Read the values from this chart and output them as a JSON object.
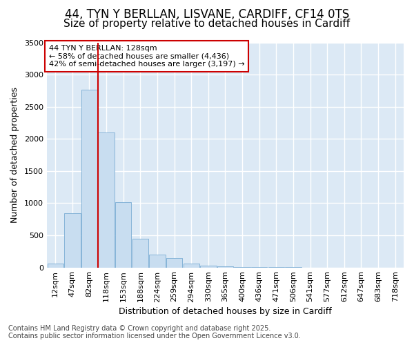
{
  "title_line1": "44, TYN Y BERLLAN, LISVANE, CARDIFF, CF14 0TS",
  "title_line2": "Size of property relative to detached houses in Cardiff",
  "xlabel": "Distribution of detached houses by size in Cardiff",
  "ylabel": "Number of detached properties",
  "categories": [
    "12sqm",
    "47sqm",
    "82sqm",
    "118sqm",
    "153sqm",
    "188sqm",
    "224sqm",
    "259sqm",
    "294sqm",
    "330sqm",
    "365sqm",
    "400sqm",
    "436sqm",
    "471sqm",
    "506sqm",
    "541sqm",
    "577sqm",
    "612sqm",
    "647sqm",
    "683sqm",
    "718sqm"
  ],
  "values": [
    60,
    840,
    2760,
    2100,
    1020,
    450,
    200,
    145,
    60,
    30,
    15,
    8,
    3,
    2,
    1,
    0,
    0,
    0,
    0,
    0,
    0
  ],
  "bar_color": "#c8ddf0",
  "bar_edge_color": "#7aadd4",
  "vline_x_index": 3,
  "vline_color": "#cc0000",
  "ylim": [
    0,
    3500
  ],
  "yticks": [
    0,
    500,
    1000,
    1500,
    2000,
    2500,
    3000,
    3500
  ],
  "annotation_title": "44 TYN Y BERLLAN: 128sqm",
  "annotation_line2": "← 58% of detached houses are smaller (4,436)",
  "annotation_line3": "42% of semi-detached houses are larger (3,197) →",
  "annotation_box_facecolor": "#ffffff",
  "annotation_box_edgecolor": "#cc0000",
  "footer_line1": "Contains HM Land Registry data © Crown copyright and database right 2025.",
  "footer_line2": "Contains public sector information licensed under the Open Government Licence v3.0.",
  "fig_facecolor": "#ffffff",
  "plot_facecolor": "#dce9f5",
  "grid_color": "#ffffff",
  "title1_fontsize": 12,
  "title2_fontsize": 11,
  "axis_label_fontsize": 9,
  "tick_fontsize": 8,
  "annotation_fontsize": 8,
  "footer_fontsize": 7
}
